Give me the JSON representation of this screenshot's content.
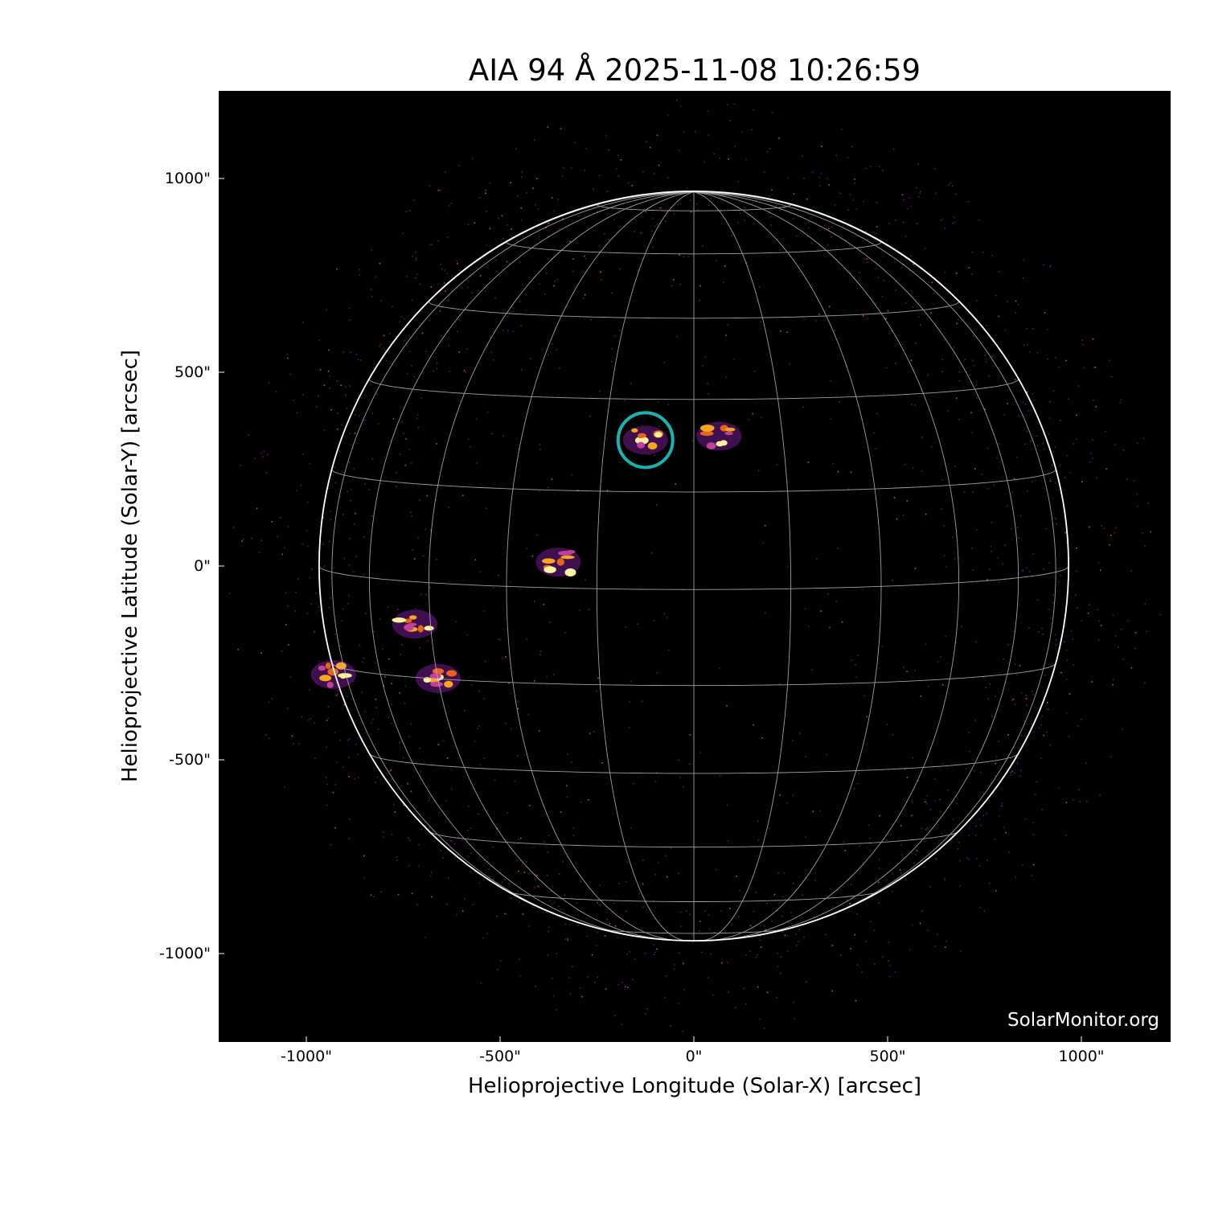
{
  "title": "AIA 94 Å 2025-11-08 10:26:59",
  "watermark": "SolarMonitor.org",
  "chart_data": {
    "type": "image",
    "title": "AIA 94 Å 2025-11-08 10:26:59",
    "xlabel": "Helioprojective Longitude (Solar-X) [arcsec]",
    "ylabel": "Helioprojective Latitude (Solar-Y) [arcsec]",
    "xlim": [
      -1230,
      1230
    ],
    "ylim": [
      -1230,
      1230
    ],
    "x_ticks": [
      "-1000\"",
      "-500\"",
      "0\"",
      "500\"",
      "1000\""
    ],
    "y_ticks": [
      "1000\"",
      "500\"",
      "0\"",
      "-500\"",
      "-1000\""
    ],
    "x_tick_values": [
      -1000,
      -500,
      0,
      500,
      1000
    ],
    "y_tick_values": [
      1000,
      500,
      0,
      -500,
      -1000
    ],
    "solar_radius_arcsec": 967,
    "grid_spacing_deg": 15,
    "colormap": "inferno-like (black-purple-orange-yellow)",
    "highlight_circle": {
      "x": -125,
      "y": 325,
      "color": "#1ab3b3"
    },
    "bright_regions": [
      {
        "x": -125,
        "y": 325
      },
      {
        "x": 65,
        "y": 335
      },
      {
        "x": -720,
        "y": -150
      },
      {
        "x": -660,
        "y": -290
      },
      {
        "x": -930,
        "y": -280
      },
      {
        "x": -350,
        "y": 10
      }
    ]
  }
}
